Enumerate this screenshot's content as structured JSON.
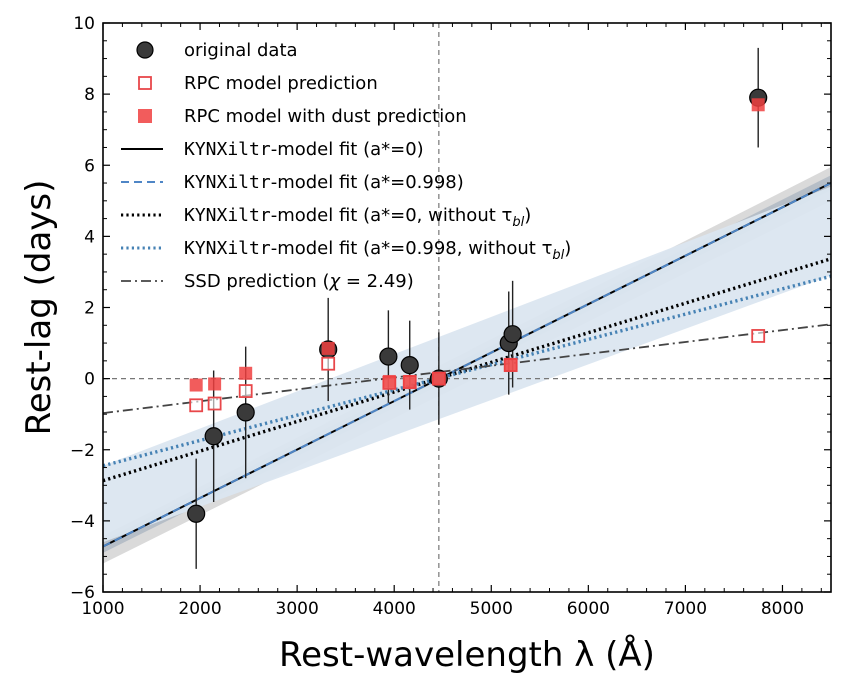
{
  "chart_data": {
    "type": "scatter",
    "title": "",
    "xlabel": "Rest-wavelength λ (Å)",
    "ylabel": "Rest-lag (days)",
    "xlim": [
      1000,
      8500
    ],
    "ylim": [
      -6,
      10
    ],
    "xticks": [
      1000,
      2000,
      3000,
      4000,
      5000,
      6000,
      7000,
      8000
    ],
    "yticks": [
      -6,
      -4,
      -2,
      0,
      2,
      4,
      6,
      8,
      10
    ],
    "reference_lines": {
      "x": 4460,
      "y": 0
    },
    "legend_position": "upper-left",
    "series": [
      {
        "name": "original data",
        "kind": "points",
        "marker": "circle",
        "color": "#222222",
        "points": [
          {
            "x": 1960,
            "y": -3.8,
            "err": 1.55
          },
          {
            "x": 2140,
            "y": -1.62,
            "err": 1.85
          },
          {
            "x": 2470,
            "y": -0.95,
            "err": 1.85
          },
          {
            "x": 3320,
            "y": 0.82,
            "err": 1.45
          },
          {
            "x": 3940,
            "y": 0.62,
            "err": 1.3
          },
          {
            "x": 4160,
            "y": 0.38,
            "err": 1.25
          },
          {
            "x": 4460,
            "y": 0.0,
            "err": 1.3
          },
          {
            "x": 5180,
            "y": 1.0,
            "err": 1.45
          },
          {
            "x": 5220,
            "y": 1.25,
            "err": 1.5
          },
          {
            "x": 7750,
            "y": 7.9,
            "err": 1.4
          }
        ]
      },
      {
        "name": "RPC model prediction",
        "kind": "points",
        "marker": "open-square",
        "color": "#e8474a",
        "points": [
          {
            "x": 1960,
            "y": -0.75
          },
          {
            "x": 2150,
            "y": -0.7
          },
          {
            "x": 2470,
            "y": -0.35
          },
          {
            "x": 3320,
            "y": 0.42
          },
          {
            "x": 3950,
            "y": -0.12
          },
          {
            "x": 4160,
            "y": -0.1
          },
          {
            "x": 4460,
            "y": 0.0
          },
          {
            "x": 5200,
            "y": 0.38
          },
          {
            "x": 7750,
            "y": 1.2
          }
        ]
      },
      {
        "name": "RPC model with dust prediction",
        "kind": "points",
        "marker": "filled-square",
        "color": "#f04040",
        "points": [
          {
            "x": 1960,
            "y": -0.18
          },
          {
            "x": 2150,
            "y": -0.15
          },
          {
            "x": 2470,
            "y": 0.15
          },
          {
            "x": 3320,
            "y": 0.85
          },
          {
            "x": 3950,
            "y": -0.08
          },
          {
            "x": 4160,
            "y": -0.08
          },
          {
            "x": 4460,
            "y": 0.0
          },
          {
            "x": 5200,
            "y": 0.4
          },
          {
            "x": 7750,
            "y": 7.7
          }
        ]
      },
      {
        "name": "KYNXiltr-model fit (a*=0)",
        "kind": "line",
        "dash": "solid",
        "color": "#000000",
        "x": [
          1000,
          8500
        ],
        "y": [
          -4.72,
          5.5
        ]
      },
      {
        "name": "KYNXiltr-model fit (a*=0.998)",
        "kind": "line",
        "dash": "dashed",
        "color": "#4f86c6",
        "x": [
          1000,
          8500
        ],
        "y": [
          -4.72,
          5.5
        ]
      },
      {
        "name": "KYNXiltr-model fit (a*=0, without τbl)",
        "kind": "line",
        "dash": "dotted",
        "color": "#000000",
        "x": [
          1000,
          8500
        ],
        "y": [
          -2.87,
          3.37
        ]
      },
      {
        "name": "KYNXiltr-model fit (a*=0.998, without τbl)",
        "kind": "line",
        "dash": "dotted",
        "color": "#4682b4",
        "x": [
          1000,
          8500
        ],
        "y": [
          -2.45,
          2.88
        ]
      },
      {
        "name": "SSD prediction (χ = 2.49)",
        "kind": "line",
        "dash": "dashdot",
        "color": "#444444",
        "x": [
          1000,
          8500
        ],
        "y": [
          -0.97,
          1.53
        ]
      }
    ],
    "bands": [
      {
        "name": "outer-gray",
        "color": "#d6d6d6",
        "opacity": 0.9,
        "x": [
          1000,
          8500
        ],
        "upper": [
          -4.42,
          5.95
        ],
        "lower": [
          -5.2,
          5.0
        ]
      },
      {
        "name": "inner-gray",
        "color": "#a9b4c0",
        "opacity": 0.75,
        "x": [
          1000,
          8500
        ],
        "upper": [
          -4.55,
          5.72
        ],
        "lower": [
          -4.9,
          5.3
        ]
      },
      {
        "name": "light-blue",
        "color": "#dbe6f0",
        "opacity": 0.95,
        "x": [
          1000,
          8500
        ],
        "upper": [
          -2.45,
          5.4
        ],
        "lower": [
          -4.6,
          2.9
        ]
      }
    ],
    "legend_entries": [
      {
        "label": "original data",
        "sym": "circle"
      },
      {
        "label": "RPC model prediction",
        "sym": "open-square"
      },
      {
        "label": "RPC model with dust prediction",
        "sym": "filled-square"
      },
      {
        "label_pre": "KYNXiltr",
        "label_post": "-model fit (a*=0)",
        "sym": "solid"
      },
      {
        "label_pre": "KYNXiltr",
        "label_post": "-model fit (a*=0.998)",
        "sym": "dashed-blue"
      },
      {
        "label_pre": "KYNXiltr",
        "label_post": "-model fit (a*=0, without τ",
        "sub": "bl",
        "close": ")",
        "sym": "dotted-black"
      },
      {
        "label_pre": "KYNXiltr",
        "label_post": "-model fit (a*=0.998, without τ",
        "sub": "bl",
        "close": ")",
        "sym": "dotted-blue"
      },
      {
        "label_pre": "SSD prediction (",
        "label_math": "χ",
        "label_post": " = 2.49)",
        "sym": "dashdot"
      }
    ]
  }
}
